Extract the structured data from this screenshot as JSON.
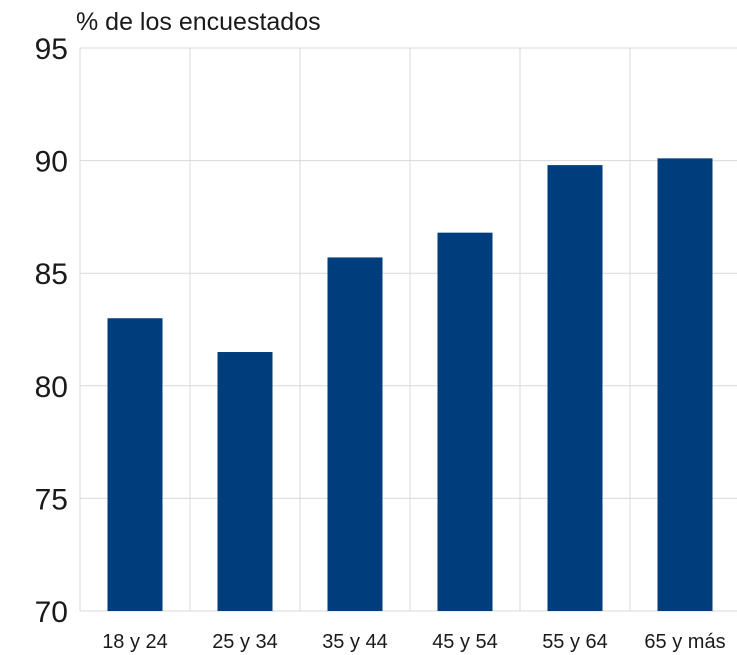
{
  "chart_data": {
    "type": "bar",
    "ylabel": "% de los encuestados",
    "xlabel": "",
    "title": "",
    "categories": [
      "18 y 24",
      "25 y 34",
      "35 y 44",
      "45 y 54",
      "55 y 64",
      "65 y más"
    ],
    "values": [
      83.0,
      81.5,
      85.7,
      86.8,
      89.8,
      90.1
    ],
    "ylim": [
      70,
      95
    ],
    "yticks": [
      "70",
      "75",
      "80",
      "85",
      "90",
      "95"
    ],
    "grid": true,
    "bar_color": "#003d7c"
  }
}
